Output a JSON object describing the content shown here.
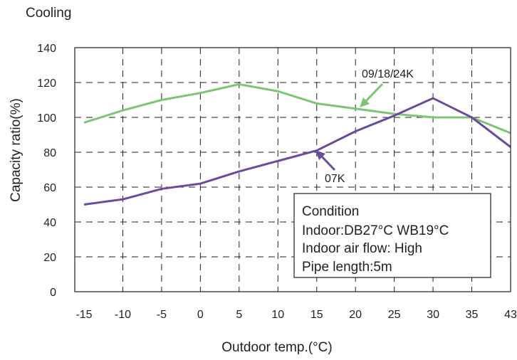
{
  "chart_data": {
    "type": "line",
    "title": "Cooling",
    "xlabel": "Outdoor temp.(°C)",
    "ylabel": "Capacity ratio(%)",
    "x_ticks": [
      "-15",
      "-10",
      "-5",
      "0",
      "5",
      "10",
      "15",
      "20",
      "25",
      "30",
      "35",
      "43"
    ],
    "y_ticks": [
      "0",
      "20",
      "40",
      "60",
      "80",
      "100",
      "120",
      "140"
    ],
    "ylim": [
      0,
      140
    ],
    "grid": true,
    "grid_style": "dashed",
    "series": [
      {
        "name": "09/18/24K",
        "color": "#7cc576",
        "x": [
          "-15",
          "-10",
          "-5",
          "0",
          "5",
          "10",
          "15",
          "20",
          "25",
          "30",
          "35",
          "43"
        ],
        "values": [
          97,
          104,
          110,
          114,
          119,
          115,
          108,
          105,
          102,
          100,
          100,
          91
        ]
      },
      {
        "name": "07K",
        "color": "#6b4aa0",
        "x": [
          "-15",
          "-10",
          "-5",
          "0",
          "5",
          "10",
          "15",
          "20",
          "25",
          "30",
          "35",
          "43"
        ],
        "values": [
          50,
          53,
          59,
          62,
          69,
          75,
          81,
          92,
          101,
          111,
          100,
          83
        ]
      }
    ],
    "condition_box": {
      "lines": [
        "Condition",
        "Indoor:DB27°C WB19°C",
        "Indoor air flow: High",
        "Pipe length:5m"
      ],
      "placement": "bottom-right"
    }
  }
}
